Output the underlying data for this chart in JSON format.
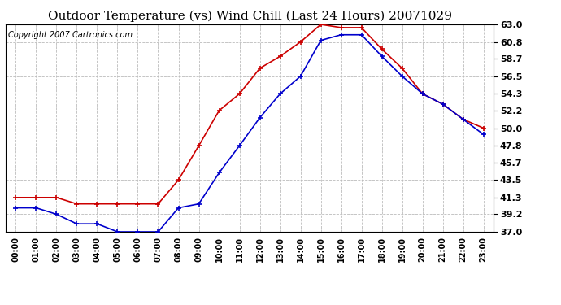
{
  "title": "Outdoor Temperature (vs) Wind Chill (Last 24 Hours) 20071029",
  "copyright": "Copyright 2007 Cartronics.com",
  "hours": [
    "00:00",
    "01:00",
    "02:00",
    "03:00",
    "04:00",
    "05:00",
    "06:00",
    "07:00",
    "08:00",
    "09:00",
    "10:00",
    "11:00",
    "12:00",
    "13:00",
    "14:00",
    "15:00",
    "16:00",
    "17:00",
    "18:00",
    "19:00",
    "20:00",
    "21:00",
    "22:00",
    "23:00"
  ],
  "temp": [
    41.3,
    41.3,
    41.3,
    40.5,
    40.5,
    40.5,
    40.5,
    40.5,
    43.5,
    47.8,
    52.2,
    54.3,
    57.5,
    59.0,
    60.8,
    63.0,
    62.6,
    62.6,
    59.9,
    57.5,
    54.3,
    53.0,
    51.1,
    50.0
  ],
  "windchill": [
    40.0,
    40.0,
    39.2,
    38.0,
    38.0,
    37.0,
    37.0,
    37.0,
    40.0,
    40.5,
    44.4,
    47.8,
    51.3,
    54.3,
    56.5,
    61.0,
    61.7,
    61.7,
    59.0,
    56.5,
    54.3,
    53.0,
    51.1,
    49.2
  ],
  "temp_color": "#cc0000",
  "windchill_color": "#0000cc",
  "ylim": [
    37.0,
    63.0
  ],
  "yticks": [
    37.0,
    39.2,
    41.3,
    43.5,
    45.7,
    47.8,
    50.0,
    52.2,
    54.3,
    56.5,
    58.7,
    60.8,
    63.0
  ],
  "bg_color": "#ffffff",
  "plot_bg_color": "#ffffff",
  "grid_color": "#bbbbbb",
  "title_fontsize": 11,
  "copyright_fontsize": 7,
  "tick_fontsize": 8,
  "xtick_fontsize": 7
}
